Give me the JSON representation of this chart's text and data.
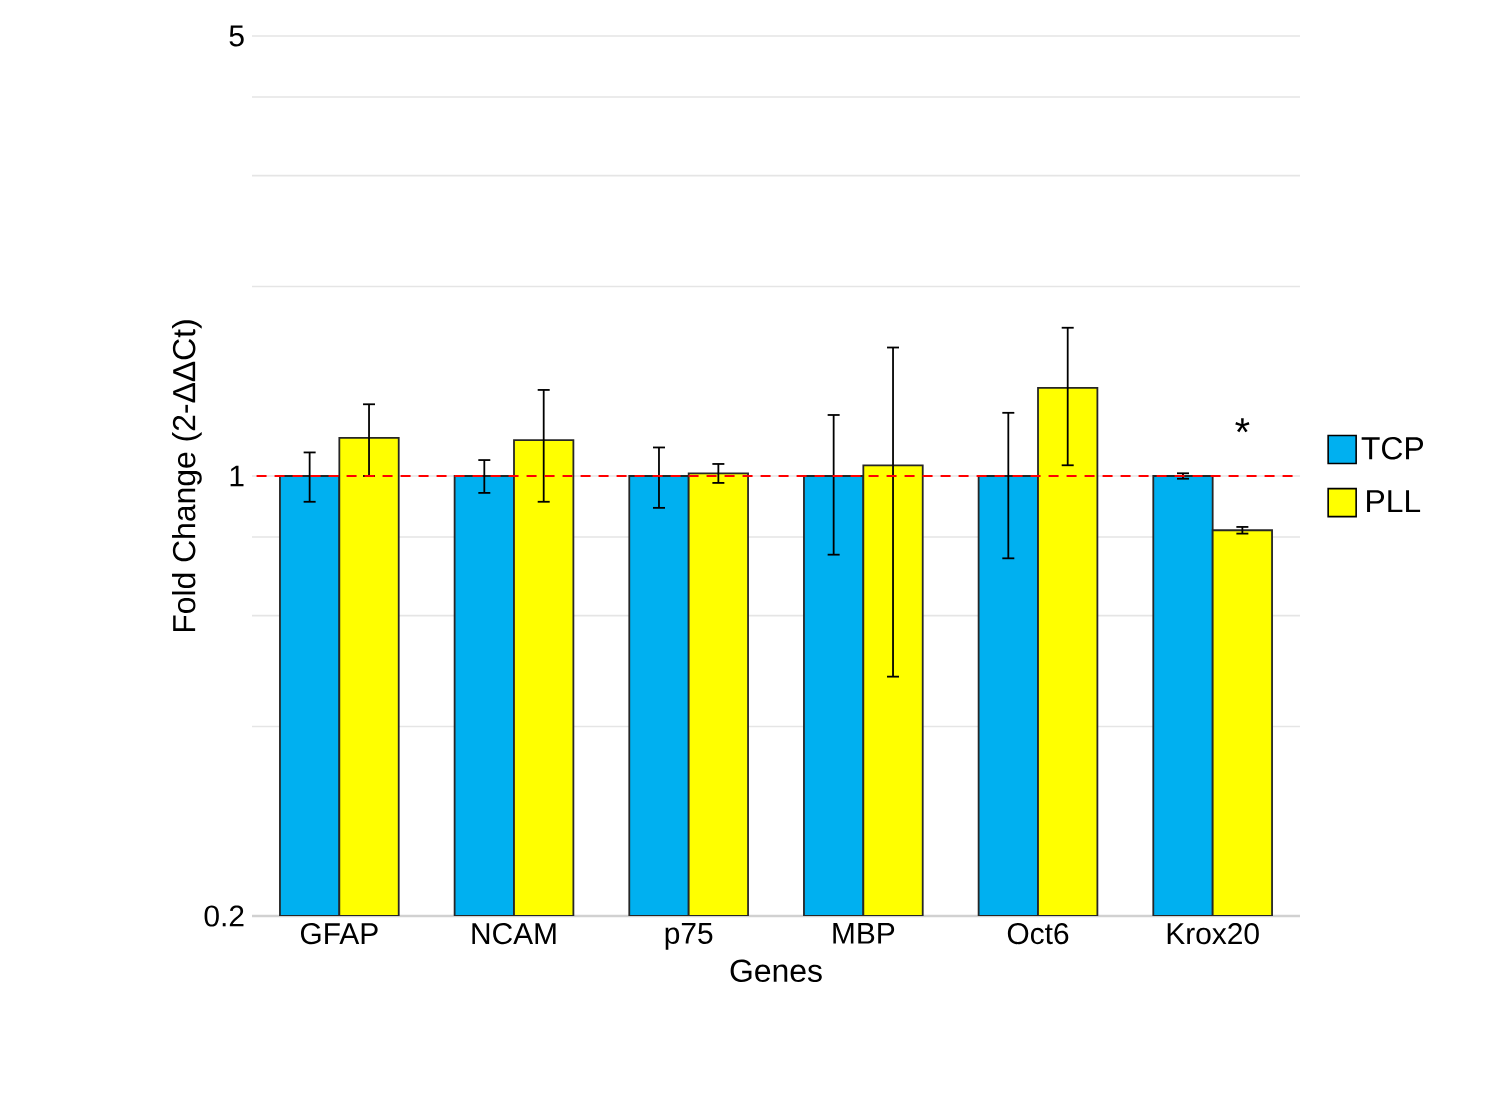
{
  "chart_data": {
    "type": "bar",
    "xlabel": "Genes",
    "ylabel": "Fold Change (2-ΔΔCt)",
    "categories": [
      "GFAP",
      "NCAM",
      "p75",
      "MBP",
      "Oct6",
      "Krox20"
    ],
    "series": [
      {
        "name": "TCP",
        "color": "#00b0f0",
        "values": [
          1,
          1,
          1,
          1,
          1,
          1
        ],
        "errors": [
          0.09,
          0.06,
          0.11,
          0.25,
          0.26,
          0.01
        ]
      },
      {
        "name": "PLL",
        "color": "#ffff00",
        "values": [
          1.15,
          1.14,
          1.01,
          1.04,
          1.38,
          0.82
        ],
        "errors": [
          0.15,
          0.23,
          0.035,
          0.56,
          0.34,
          0.01
        ]
      }
    ],
    "log": "y",
    "ylim": [
      0.2,
      5
    ],
    "yticks": [
      0.2,
      {
        "value": 0.4,
        "label": null
      },
      {
        "value": 0.6,
        "label": null
      },
      {
        "value": 0.8,
        "label": null
      },
      1,
      {
        "value": 2,
        "label": null
      },
      {
        "value": 3,
        "label": null
      },
      {
        "value": 4,
        "label": null
      },
      5
    ],
    "grid": "y",
    "legend": "right",
    "ref_lines": [
      {
        "axis": "y",
        "value": 1,
        "color": "#ff0000",
        "line_style": "dashed"
      }
    ],
    "annotations": [
      "*"
    ]
  }
}
